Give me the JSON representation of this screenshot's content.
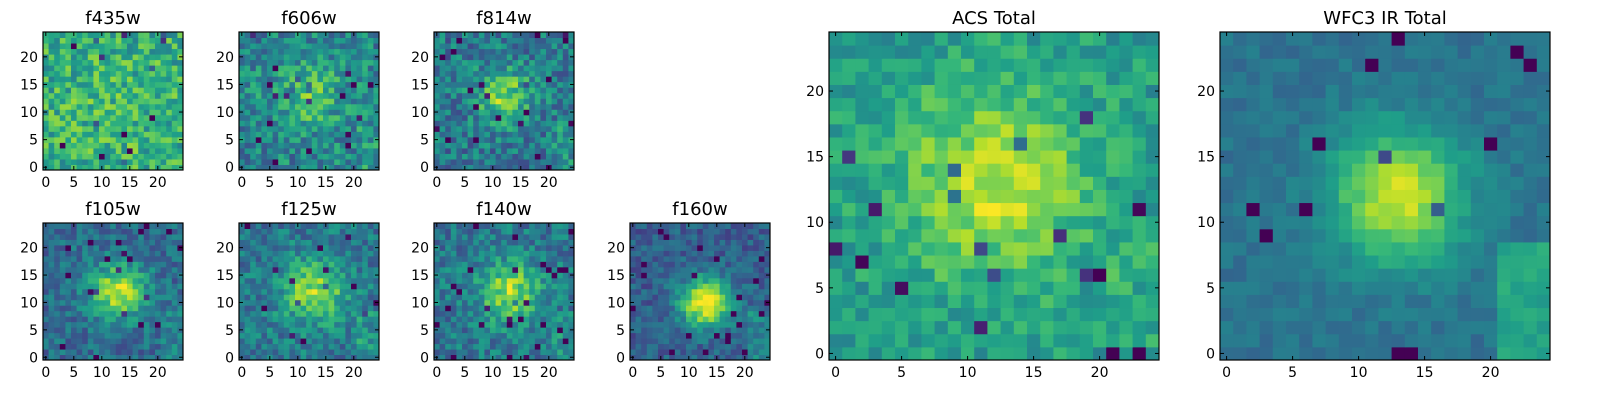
{
  "chart_data": {
    "type": "heatmap",
    "colormap": "viridis",
    "panels": [
      {
        "title": "f435w",
        "grid": 25,
        "xticks": [
          0,
          5,
          10,
          15,
          20
        ],
        "yticks": [
          0,
          5,
          10,
          15,
          20
        ],
        "seed": 11,
        "peak": [
          12,
          10
        ],
        "sigma": 7,
        "amp": 0.05,
        "noise": 0.4,
        "base": 0.62,
        "edge": 0.0
      },
      {
        "title": "f606w",
        "grid": 25,
        "xticks": [
          0,
          5,
          10,
          15,
          20
        ],
        "yticks": [
          0,
          5,
          10,
          15,
          20
        ],
        "seed": 23,
        "peak": [
          12,
          13
        ],
        "sigma": 4.5,
        "amp": 0.25,
        "noise": 0.4,
        "base": 0.45,
        "edge": 0.08
      },
      {
        "title": "f814w",
        "grid": 25,
        "xticks": [
          0,
          5,
          10,
          15,
          20
        ],
        "yticks": [
          0,
          5,
          10,
          15,
          20
        ],
        "seed": 37,
        "peak": [
          12,
          13
        ],
        "sigma": 3.5,
        "amp": 0.4,
        "noise": 0.38,
        "base": 0.4,
        "edge": 0.1
      },
      {
        "title": "f105w",
        "grid": 25,
        "xticks": [
          0,
          5,
          10,
          15,
          20
        ],
        "yticks": [
          0,
          5,
          10,
          15,
          20
        ],
        "seed": 41,
        "peak": [
          13,
          12
        ],
        "sigma": 3.5,
        "amp": 0.55,
        "noise": 0.28,
        "base": 0.35,
        "edge": 0.1
      },
      {
        "title": "f125w",
        "grid": 25,
        "xticks": [
          0,
          5,
          10,
          15,
          20
        ],
        "yticks": [
          0,
          5,
          10,
          15,
          20
        ],
        "seed": 53,
        "peak": [
          13,
          12
        ],
        "sigma": 4.0,
        "amp": 0.45,
        "noise": 0.32,
        "base": 0.4,
        "edge": 0.12
      },
      {
        "title": "f140w",
        "grid": 25,
        "xticks": [
          0,
          5,
          10,
          15,
          20
        ],
        "yticks": [
          0,
          5,
          10,
          15,
          20
        ],
        "seed": 67,
        "peak": [
          13,
          12
        ],
        "sigma": 3.8,
        "amp": 0.45,
        "noise": 0.32,
        "base": 0.4,
        "edge": 0.1
      },
      {
        "title": "f160w",
        "grid": 25,
        "xticks": [
          0,
          5,
          10,
          15,
          20
        ],
        "yticks": [
          0,
          5,
          10,
          15,
          20
        ],
        "seed": 71,
        "peak": [
          13,
          10
        ],
        "sigma": 3.2,
        "amp": 0.7,
        "noise": 0.24,
        "base": 0.3,
        "edge": 0.15
      },
      {
        "title": "ACS Total",
        "grid": 25,
        "xticks": [
          0,
          5,
          10,
          15,
          20
        ],
        "yticks": [
          0,
          5,
          10,
          15,
          20
        ],
        "seed": 83,
        "peak": [
          12,
          13
        ],
        "sigma": 5.0,
        "amp": 0.35,
        "noise": 0.25,
        "base": 0.55,
        "edge": 0.05
      },
      {
        "title": "WFC3 IR Total",
        "grid": 25,
        "xticks": [
          0,
          5,
          10,
          15,
          20
        ],
        "yticks": [
          0,
          5,
          10,
          15,
          20
        ],
        "seed": 97,
        "peak": [
          13,
          12
        ],
        "sigma": 3.5,
        "amp": 0.55,
        "noise": 0.12,
        "base": 0.38,
        "edge": 0.2
      }
    ]
  }
}
